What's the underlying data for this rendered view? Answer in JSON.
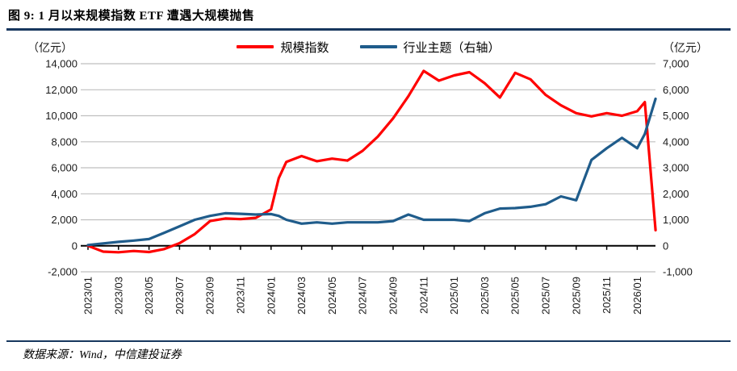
{
  "title": "图 9: 1 月以来规模指数 ETF 遭遇大规模抛售",
  "source_note": "数据来源：Wind，中信建投证券",
  "left_axis_unit": "（亿元）",
  "right_axis_unit": "（亿元）",
  "legend": [
    {
      "label": "规模指数",
      "color": "#FF0000"
    },
    {
      "label": "行业主题（右轴）",
      "color": "#1F5C8B"
    }
  ],
  "colors": {
    "rule_navy": "#17375E",
    "grid_gray": "#BFBFBF",
    "axis_black": "#000000",
    "tick_text": "#1a1a1a",
    "series_red": "#FF0000",
    "series_blue": "#1F5C8B"
  },
  "chart_data": {
    "type": "line",
    "title": "图 9: 1 月以来规模指数 ETF 遭遇大规模抛售",
    "x_unit": "months since 2023/01",
    "grid": true,
    "legend_position": "top-center",
    "x_ticks": [
      "2023/01",
      "2023/03",
      "2023/05",
      "2023/07",
      "2023/09",
      "2023/11",
      "2024/01",
      "2024/03",
      "2024/05",
      "2024/07",
      "2024/09",
      "2024/11",
      "2025/01",
      "2025/03",
      "2025/05",
      "2025/07",
      "2025/09",
      "2025/11",
      "2026/01"
    ],
    "left_axis": {
      "label": "（亿元）",
      "min": -2000,
      "max": 14000,
      "ticks_top_to_bottom": [
        "14,000",
        "12,000",
        "10,000",
        "8,000",
        "6,000",
        "4,000",
        "2,000",
        "0",
        "-2,000"
      ]
    },
    "right_axis": {
      "label": "（亿元）",
      "min": -1000,
      "max": 7000,
      "ticks_top_to_bottom": [
        "7,000",
        "6,000",
        "5,000",
        "4,000",
        "3,000",
        "2,000",
        "1,000",
        "0",
        "-1,000"
      ]
    },
    "x": [
      0,
      1,
      2,
      3,
      4,
      5,
      6,
      7,
      8,
      9,
      10,
      11,
      12,
      12.5,
      13,
      14,
      15,
      16,
      17,
      18,
      19,
      20,
      21,
      22,
      23,
      24,
      25,
      26,
      27,
      28,
      29,
      30,
      31,
      32,
      33,
      34,
      35,
      36,
      36.5,
      37.2
    ],
    "series": [
      {
        "name": "规模指数",
        "key": "scale-index",
        "axis": "left",
        "color": "#FF0000",
        "values": [
          0,
          -450,
          -500,
          -400,
          -480,
          -250,
          200,
          900,
          1900,
          2100,
          2050,
          2150,
          2800,
          5200,
          6450,
          6900,
          6500,
          6700,
          6550,
          7300,
          8400,
          9800,
          11500,
          13450,
          12700,
          13100,
          13350,
          12500,
          11400,
          13300,
          12800,
          11600,
          10800,
          10200,
          9950,
          10200,
          10000,
          10350,
          11050,
          1200
        ]
      },
      {
        "name": "行业主题（右轴）",
        "key": "industry-theme",
        "axis": "right",
        "color": "#1F5C8B",
        "values": [
          30,
          90,
          150,
          200,
          260,
          500,
          750,
          1000,
          1150,
          1250,
          1230,
          1200,
          1220,
          1150,
          1000,
          850,
          900,
          850,
          900,
          900,
          900,
          950,
          1200,
          1000,
          1000,
          1000,
          950,
          1250,
          1430,
          1450,
          1500,
          1600,
          1900,
          1750,
          3300,
          3750,
          4150,
          3750,
          4300,
          5650
        ]
      }
    ]
  }
}
